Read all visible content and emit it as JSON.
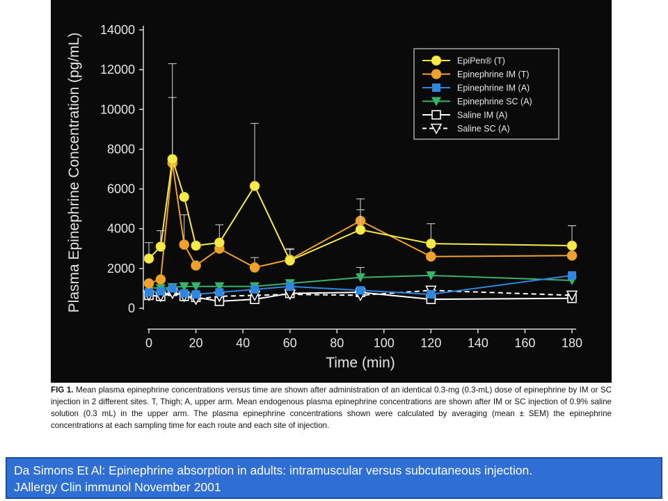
{
  "chart_data": {
    "type": "line",
    "xlabel": "Time (min)",
    "ylabel": "Plasma Epinephrine Concentration (pg/mL)",
    "xlim": [
      0,
      180
    ],
    "ylim": [
      0,
      14000
    ],
    "x_ticks": [
      0,
      20,
      40,
      60,
      80,
      100,
      120,
      140,
      160,
      180
    ],
    "y_ticks": [
      0,
      2000,
      4000,
      6000,
      8000,
      10000,
      12000,
      14000
    ],
    "legend_position": "top-right",
    "series": [
      {
        "name": "EpiPen® (T)",
        "color": "#f4ea4c",
        "marker": "circle-filled",
        "dash": "solid",
        "x": [
          0,
          5,
          10,
          15,
          20,
          30,
          45,
          60,
          90,
          120,
          180
        ],
        "y": [
          2500,
          3100,
          7500,
          5600,
          3150,
          3300,
          6150,
          2400,
          3950,
          3250,
          3150
        ],
        "err": [
          800,
          800,
          4800,
          0,
          0,
          900,
          3150,
          600,
          1000,
          1000,
          1000
        ]
      },
      {
        "name": "Epinephrine IM (T)",
        "color": "#f0a030",
        "marker": "circle-filled",
        "dash": "solid",
        "x": [
          0,
          5,
          10,
          15,
          20,
          30,
          45,
          60,
          90,
          120,
          180
        ],
        "y": [
          1250,
          1450,
          7300,
          3200,
          2150,
          3000,
          2050,
          2450,
          4400,
          2600,
          2650
        ],
        "err": [
          0,
          0,
          3300,
          1500,
          0,
          0,
          500,
          500,
          1100,
          500,
          1500
        ]
      },
      {
        "name": "Epinephrine IM (A)",
        "color": "#2e86de",
        "marker": "square-filled",
        "dash": "solid",
        "x": [
          0,
          5,
          10,
          15,
          20,
          30,
          45,
          60,
          90,
          120,
          180
        ],
        "y": [
          800,
          850,
          1000,
          750,
          700,
          800,
          950,
          1100,
          900,
          700,
          1650
        ],
        "err": [
          0,
          0,
          0,
          0,
          0,
          0,
          0,
          0,
          0,
          0,
          0
        ]
      },
      {
        "name": "Epinephrine SC (A)",
        "color": "#38b36a",
        "marker": "triangle-down-filled",
        "dash": "solid",
        "x": [
          0,
          5,
          10,
          15,
          20,
          30,
          45,
          60,
          90,
          120,
          180
        ],
        "y": [
          1050,
          1000,
          1050,
          1100,
          1100,
          1100,
          1100,
          1250,
          1550,
          1650,
          1400
        ],
        "err": [
          0,
          0,
          0,
          0,
          0,
          0,
          0,
          0,
          500,
          0,
          0
        ]
      },
      {
        "name": "Saline IM (A)",
        "color": "#ffffff",
        "marker": "square-open",
        "dash": "solid",
        "x": [
          0,
          5,
          10,
          15,
          20,
          30,
          45,
          60,
          90,
          120,
          180
        ],
        "y": [
          650,
          600,
          850,
          600,
          550,
          350,
          450,
          750,
          800,
          450,
          500
        ],
        "err": [
          0,
          0,
          0,
          0,
          0,
          0,
          0,
          0,
          0,
          0,
          0
        ]
      },
      {
        "name": "Saline SC (A)",
        "color": "#ffffff",
        "marker": "triangle-down-open",
        "dash": "dashed",
        "x": [
          0,
          5,
          10,
          15,
          20,
          30,
          45,
          60,
          90,
          120,
          180
        ],
        "y": [
          650,
          600,
          750,
          600,
          450,
          600,
          650,
          700,
          650,
          900,
          650
        ],
        "err": [
          0,
          0,
          0,
          0,
          0,
          0,
          0,
          0,
          0,
          0,
          0
        ]
      }
    ]
  },
  "caption": {
    "fig_label": "FIG 1.",
    "text": "Mean plasma epinephrine concentrations versus time are shown after administration of an identical 0.3-mg (0.3-mL) dose of epinephrine by IM or SC injection in 2 different sites. T, Thigh; A, upper arm. Mean endogenous plasma epinephrine concentrations are shown after IM or SC injection of 0.9% saline solution (0.3 mL) in the upper arm. The plasma epinephrine concentrations shown were calculated by averaging (mean ± SEM) the epinephrine concentrations at each sampling time for each route and each site of injection."
  },
  "banner": {
    "line1": "Da Simons Et Al: Epinephrine absorption in adults: intramuscular versus subcutaneous injection.",
    "line2": "JAllergy Clin immunol November 2001"
  }
}
